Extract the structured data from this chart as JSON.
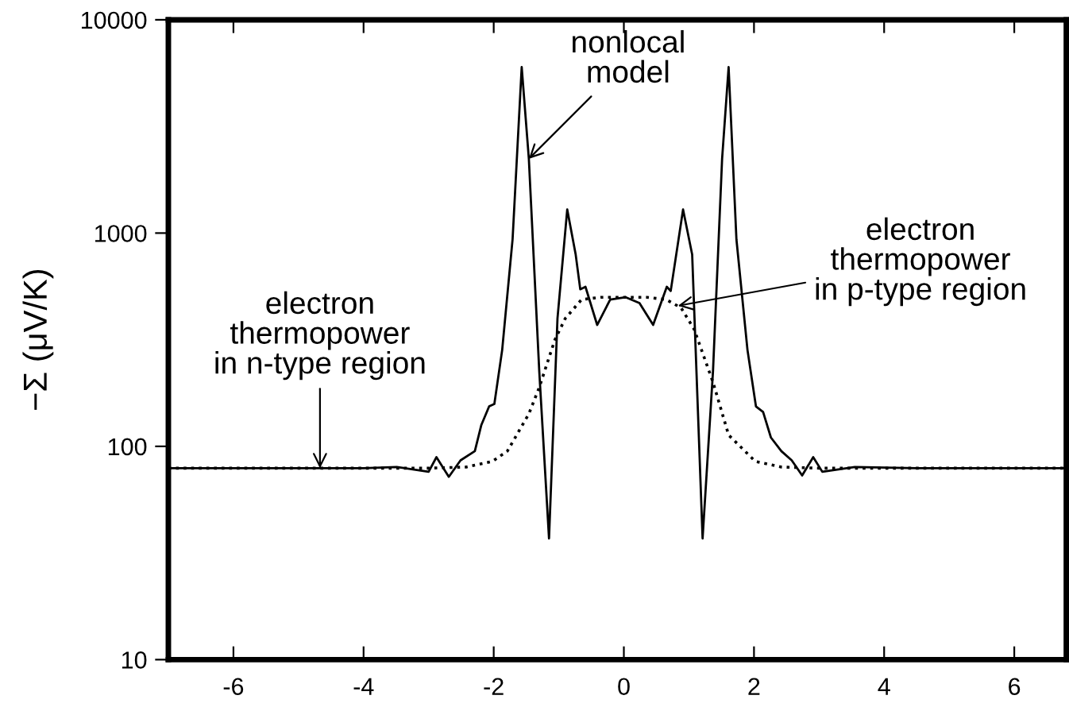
{
  "chart_data": {
    "type": "line",
    "ylabel": "−Σ (μV/K)",
    "log": "y",
    "xlim": [
      -7,
      6.8
    ],
    "ylim": [
      10,
      10000
    ],
    "xticks": [
      -6,
      -4,
      -2,
      0,
      2,
      4,
      6
    ],
    "yticks": [
      10,
      100,
      1000,
      10000
    ],
    "grid": false,
    "legend": false,
    "marker": "none",
    "series": [
      {
        "color": "#000000",
        "line_style": "solid",
        "x": [
          -7,
          -4,
          -3.49,
          -3.0,
          -2.88,
          -2.69,
          -2.51,
          -2.29,
          -2.19,
          -2.07,
          -1.99,
          -1.87,
          -1.71,
          -1.57,
          -1.46,
          -1.3,
          -1.15,
          -1.02,
          -0.87,
          -0.74,
          -0.67,
          -0.59,
          -0.41,
          -0.21,
          0.03,
          0.24,
          0.45,
          0.66,
          0.72,
          0.91,
          1.05,
          1.21,
          1.37,
          1.51,
          1.61,
          1.73,
          1.9,
          2.03,
          2.14,
          2.26,
          2.42,
          2.58,
          2.74,
          2.91,
          3.05,
          3.55,
          4.5,
          6.8
        ],
        "values": [
          79,
          79,
          80,
          76,
          89,
          72,
          86,
          95,
          126,
          154,
          158,
          283,
          935,
          6000,
          2230,
          225,
          37,
          398,
          1290,
          792,
          545,
          560,
          371,
          488,
          500,
          470,
          371,
          560,
          535,
          1290,
          792,
          37,
          225,
          2230,
          6000,
          935,
          283,
          154,
          145,
          110,
          95,
          86,
          73,
          89,
          76,
          80,
          79,
          79
        ]
      },
      {
        "color": "#000000",
        "line_style": "dotted",
        "x": [
          -7,
          -3,
          -2.42,
          -2.02,
          -1.79,
          -1.46,
          -1.3,
          -1.06,
          -0.9,
          -0.65,
          -0.35,
          0,
          0.35,
          0.65,
          0.88,
          1.08,
          1.37,
          1.61,
          2.02,
          2.42,
          3,
          6.8
        ],
        "values": [
          79,
          79,
          80,
          85,
          95,
          142,
          189,
          316,
          398,
          488,
          500,
          500,
          500,
          488,
          446,
          354,
          200,
          113,
          85,
          80,
          79,
          79
        ]
      }
    ],
    "annotations": [
      {
        "text": "nonlocal\nmodel",
        "x": -1.46,
        "y": 2230
      },
      {
        "text": "electron\nthermopower\nin p-type region",
        "x": 0.83,
        "y": 456
      },
      {
        "text": "electron\nthermopower\nin n-type region",
        "x": -4.67,
        "y": 79
      }
    ]
  }
}
